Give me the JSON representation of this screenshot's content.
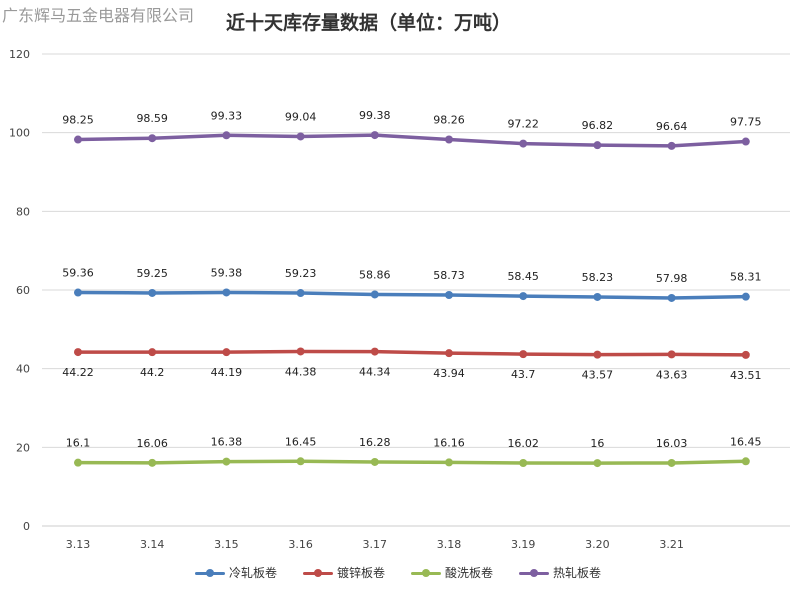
{
  "watermark": "广东辉马五金电器有限公司",
  "chart_data": {
    "type": "line",
    "title": "近十天库存量数据（单位：万吨）",
    "categories": [
      "3.13",
      "3.14",
      "3.15",
      "3.16",
      "3.17",
      "3.18",
      "3.19",
      "3.20",
      "3.21",
      ""
    ],
    "ylim": [
      0,
      120
    ],
    "yticks": [
      0,
      20,
      40,
      60,
      80,
      100,
      120
    ],
    "grid": true,
    "legend_position": "bottom",
    "series": [
      {
        "name": "冷轧板卷",
        "color": "#4a7ebb",
        "label_position": "above",
        "values": [
          59.36,
          59.25,
          59.38,
          59.23,
          58.86,
          58.73,
          58.45,
          58.23,
          57.98,
          58.31
        ]
      },
      {
        "name": "镀锌板卷",
        "color": "#be4b48",
        "label_position": "below",
        "values": [
          44.22,
          44.2,
          44.19,
          44.38,
          44.34,
          43.94,
          43.7,
          43.57,
          43.63,
          43.51
        ]
      },
      {
        "name": "酸洗板卷",
        "color": "#98b954",
        "label_position": "above",
        "values": [
          16.1,
          16.06,
          16.38,
          16.45,
          16.28,
          16.16,
          16.02,
          16,
          16.03,
          16.45
        ]
      },
      {
        "name": "热轧板卷",
        "color": "#7d5fa0",
        "label_position": "above",
        "values": [
          98.25,
          98.59,
          99.33,
          99.04,
          99.38,
          98.26,
          97.22,
          96.82,
          96.64,
          97.75
        ]
      }
    ]
  }
}
